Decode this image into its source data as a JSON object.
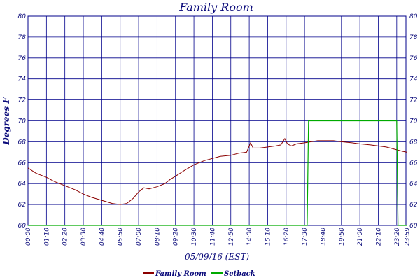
{
  "chart_data": {
    "type": "line",
    "title": "Family Room",
    "ylabel": "Degrees F",
    "xlabel": "05/09/16 (EST)",
    "ylim": [
      60,
      80
    ],
    "yticks": [
      60,
      62,
      64,
      66,
      68,
      70,
      72,
      74,
      76,
      78,
      80
    ],
    "xlim_minutes": [
      0,
      1435
    ],
    "xtick_labels": [
      "00:00",
      "01:10",
      "02:20",
      "03:30",
      "04:40",
      "05:50",
      "07:00",
      "08:10",
      "09:20",
      "10:30",
      "11:40",
      "12:50",
      "14:00",
      "15:10",
      "16:20",
      "17:30",
      "18:40",
      "19:50",
      "21:00",
      "22:10",
      "23:20",
      "23:59"
    ],
    "grid": true,
    "legend_position": "bottom-center",
    "series": [
      {
        "name": "Family Room",
        "color": "#8b0000",
        "x": [
          "00:00",
          "00:30",
          "01:10",
          "01:40",
          "02:20",
          "03:00",
          "03:30",
          "04:00",
          "04:40",
          "05:20",
          "05:50",
          "06:15",
          "06:40",
          "07:00",
          "07:20",
          "07:40",
          "08:10",
          "08:40",
          "09:00",
          "09:20",
          "09:50",
          "10:30",
          "10:50",
          "11:10",
          "11:40",
          "12:10",
          "12:50",
          "13:20",
          "13:50",
          "14:05",
          "14:15",
          "14:40",
          "15:10",
          "15:40",
          "16:00",
          "16:15",
          "16:25",
          "16:40",
          "17:00",
          "17:30",
          "17:55",
          "18:20",
          "18:40",
          "19:00",
          "19:20",
          "19:50",
          "20:30",
          "21:00",
          "21:40",
          "22:10",
          "22:40",
          "23:10",
          "23:40",
          "23:59"
        ],
        "values": [
          65.5,
          65.0,
          64.6,
          64.2,
          63.8,
          63.4,
          63.0,
          62.7,
          62.4,
          62.1,
          62.0,
          62.1,
          62.6,
          63.2,
          63.6,
          63.5,
          63.7,
          64.0,
          64.4,
          64.7,
          65.2,
          65.8,
          66.0,
          66.2,
          66.4,
          66.6,
          66.7,
          66.9,
          67.0,
          67.9,
          67.4,
          67.4,
          67.5,
          67.6,
          67.7,
          68.3,
          67.8,
          67.6,
          67.8,
          67.9,
          68.0,
          68.1,
          68.1,
          68.1,
          68.1,
          68.0,
          67.9,
          67.8,
          67.7,
          67.6,
          67.5,
          67.3,
          67.1,
          67.0
        ]
      },
      {
        "name": "Setback",
        "color": "#00aa00",
        "x": [
          "00:00",
          "17:40",
          "17:45",
          "23:20",
          "23:25",
          "23:59"
        ],
        "values": [
          60.0,
          60.0,
          70.0,
          70.0,
          60.0,
          60.0
        ]
      }
    ]
  }
}
